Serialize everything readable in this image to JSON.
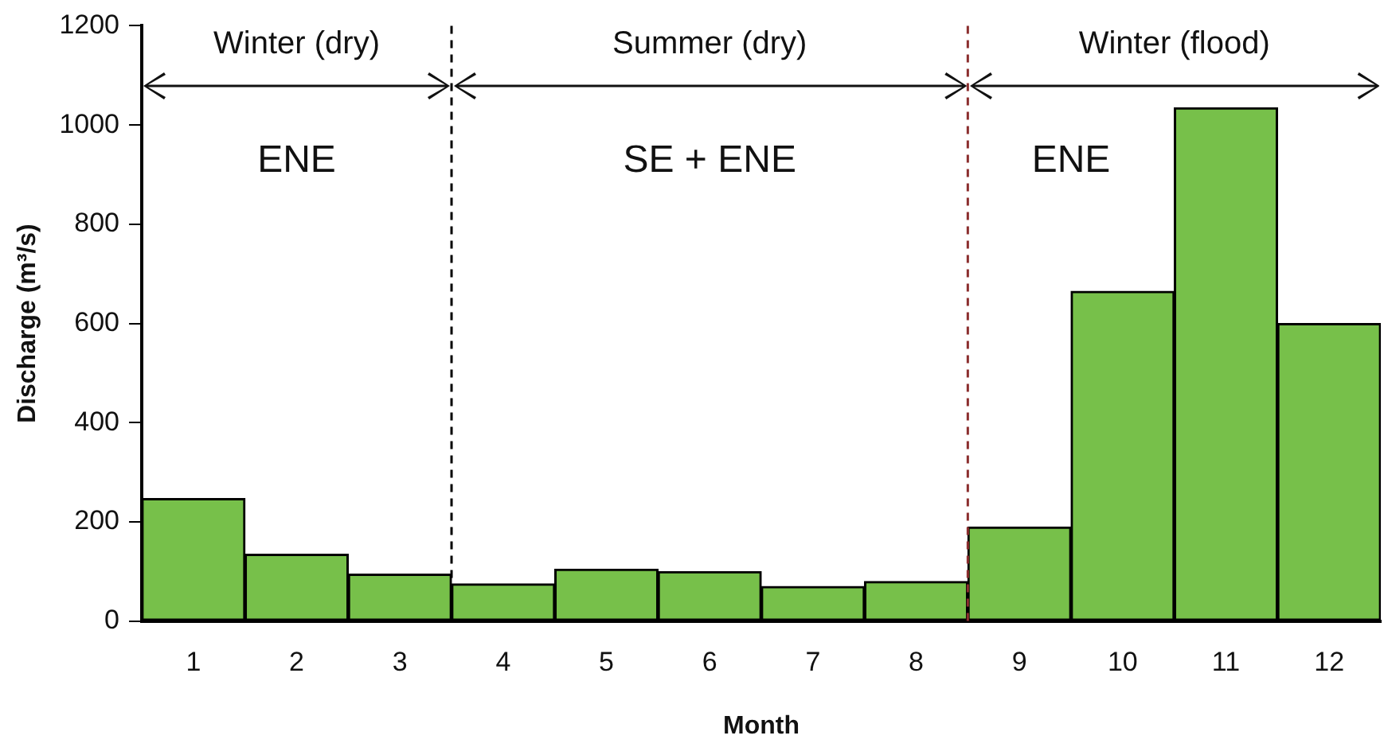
{
  "chart_data": {
    "type": "bar",
    "xlabel": "Month",
    "ylabel": "Discharge (m³/s)",
    "x": [
      1,
      2,
      3,
      4,
      5,
      6,
      7,
      8,
      9,
      10,
      11,
      12
    ],
    "values": [
      247,
      135,
      95,
      75,
      105,
      100,
      70,
      80,
      190,
      665,
      1035,
      600
    ],
    "color": "#77c04a",
    "xlim": [
      0.5,
      12.5
    ],
    "xticks": [
      1,
      2,
      3,
      4,
      5,
      6,
      7,
      8,
      9,
      10,
      11,
      12
    ],
    "ylim": [
      0,
      1200
    ],
    "yticks": [
      0,
      200,
      400,
      600,
      800,
      1000,
      1200
    ],
    "grid": false,
    "legend": false,
    "ref_lines": [
      {
        "axis": "x",
        "value": 3.5,
        "color": "#000000",
        "line_style": "dashed"
      },
      {
        "axis": "x",
        "value": 8.5,
        "color": "#8b2e2e",
        "line_style": "dashed"
      }
    ],
    "annotations": [
      "Winter (dry)",
      "Summer (dry)",
      "Winter (flood)",
      "ENE",
      "SE + ENE",
      "ENE"
    ]
  }
}
